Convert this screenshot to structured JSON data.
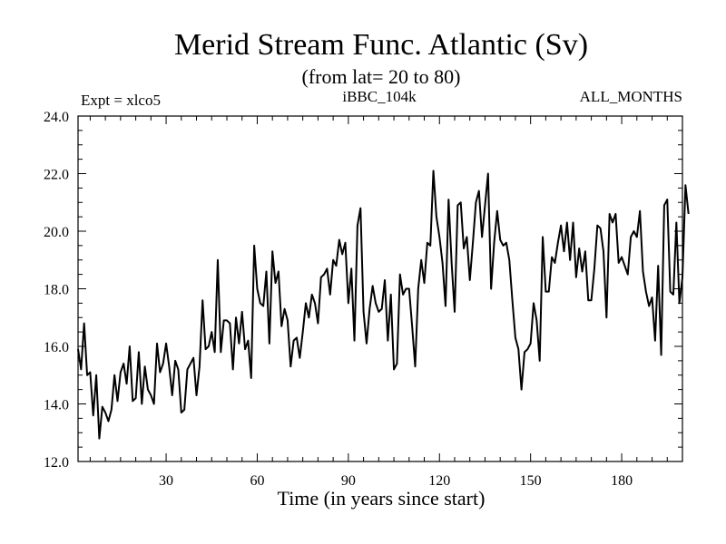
{
  "chart_data": {
    "type": "line",
    "title": "Merid Stream Func. Atlantic (Sv)",
    "subtitle": "(from lat= 20 to 80)",
    "annotations": {
      "left": "Expt = xlco5",
      "center": "iBBC_104k",
      "right": "ALL_MONTHS"
    },
    "xlabel": "Time (in years since start)",
    "ylabel": "",
    "xlim": [
      1,
      200
    ],
    "ylim": [
      12.0,
      24.0
    ],
    "x_ticks": [
      30,
      60,
      90,
      120,
      150,
      180
    ],
    "x_tick_labels": [
      "30",
      "60",
      "90",
      "120",
      "150",
      "180"
    ],
    "y_ticks": [
      12,
      14,
      16,
      18,
      20,
      22,
      24
    ],
    "y_tick_labels": [
      "12.0",
      "14.0",
      "16.0",
      "18.0",
      "20.0",
      "22.0",
      "24.0"
    ],
    "grid": false,
    "legend": "none",
    "series": [
      {
        "name": "Merid Stream Func. Atlantic",
        "x_start": 1,
        "x_step": 1,
        "values": [
          15.9,
          15.2,
          16.8,
          15.0,
          15.1,
          13.6,
          15.0,
          12.8,
          13.9,
          13.7,
          13.4,
          13.8,
          15.0,
          14.1,
          15.1,
          15.4,
          14.7,
          16.0,
          14.1,
          14.2,
          15.8,
          14.0,
          15.3,
          14.5,
          14.3,
          14.0,
          16.1,
          15.1,
          15.4,
          16.1,
          15.3,
          14.3,
          15.5,
          15.2,
          13.7,
          13.8,
          15.2,
          15.4,
          15.6,
          14.3,
          15.3,
          17.6,
          15.9,
          16.0,
          16.5,
          15.8,
          19.0,
          15.8,
          16.9,
          16.9,
          16.8,
          15.2,
          17.0,
          16.1,
          17.2,
          15.9,
          16.2,
          14.9,
          19.5,
          18.0,
          17.5,
          17.4,
          18.6,
          16.1,
          19.3,
          18.2,
          18.6,
          16.7,
          17.3,
          16.9,
          15.3,
          16.2,
          16.3,
          15.6,
          16.5,
          17.5,
          17.0,
          17.8,
          17.5,
          16.8,
          18.4,
          18.5,
          18.7,
          17.8,
          19.0,
          18.8,
          19.7,
          19.2,
          19.6,
          17.5,
          18.7,
          16.2,
          20.2,
          20.8,
          17.2,
          16.1,
          17.3,
          18.1,
          17.5,
          17.2,
          17.3,
          18.3,
          16.2,
          17.8,
          15.2,
          15.4,
          18.5,
          17.8,
          18.0,
          18.0,
          16.7,
          15.3,
          18.0,
          19.0,
          18.2,
          19.6,
          19.5,
          22.1,
          20.5,
          19.8,
          18.9,
          17.4,
          21.1,
          18.9,
          17.2,
          20.9,
          21.0,
          19.4,
          19.8,
          18.3,
          19.6,
          21.0,
          21.4,
          19.8,
          20.9,
          22.0,
          18.0,
          19.6,
          20.7,
          19.7,
          19.5,
          19.6,
          19.0,
          17.6,
          16.3,
          15.9,
          14.5,
          15.8,
          15.9,
          16.1,
          17.5,
          16.9,
          15.5,
          19.8,
          17.9,
          17.9,
          19.1,
          18.9,
          19.6,
          20.2,
          19.3,
          20.3,
          19.0,
          20.3,
          18.4,
          19.4,
          18.6,
          19.3,
          17.6,
          17.6,
          18.7,
          20.2,
          20.1,
          19.3,
          17.0,
          20.6,
          20.3,
          20.6,
          18.9,
          19.1,
          18.8,
          18.5,
          19.8,
          20.0,
          19.8,
          20.7,
          18.6,
          17.9,
          17.4,
          17.7,
          16.2,
          18.8,
          15.7,
          20.9,
          21.1,
          17.9,
          17.8,
          20.3,
          17.5,
          18.4,
          21.6,
          20.6
        ]
      }
    ]
  }
}
